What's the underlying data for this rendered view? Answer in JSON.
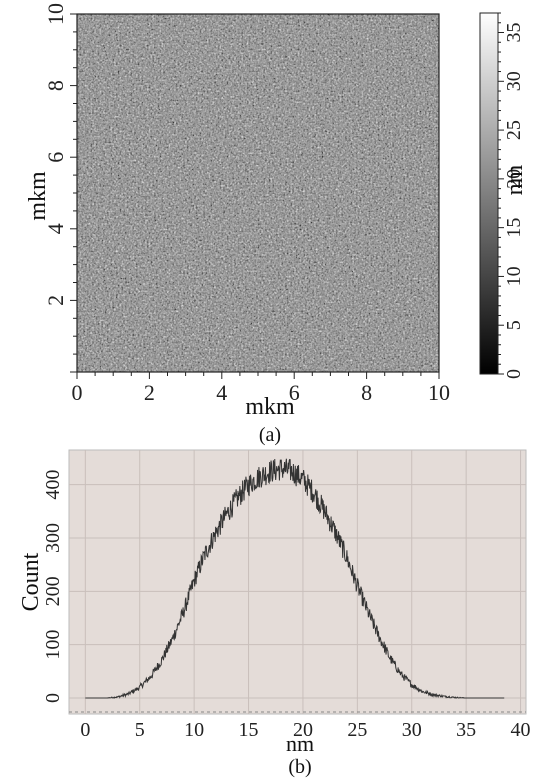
{
  "chart_data": [
    {
      "type": "heatmap",
      "panel_label": "(a)",
      "xlabel": "mkm",
      "ylabel": "mkm",
      "x_ticks": [
        "0",
        "2",
        "4",
        "6",
        "8",
        "10"
      ],
      "y_ticks": [
        "2",
        "4",
        "6",
        "8",
        "10"
      ],
      "xlim": [
        0,
        10
      ],
      "ylim": [
        0,
        10
      ],
      "colorbar": {
        "label": "nm",
        "ticks": [
          "0",
          "5",
          "10",
          "15",
          "20",
          "25",
          "30",
          "35"
        ],
        "range": [
          0,
          37
        ],
        "colors": [
          "#000000",
          "#ffffff"
        ]
      },
      "description_hint": "grainy grayscale AFM height map"
    },
    {
      "type": "line",
      "panel_label": "(b)",
      "xlabel": "nm",
      "ylabel": "Count",
      "x_ticks": [
        "0",
        "5",
        "10",
        "15",
        "20",
        "25",
        "30",
        "35",
        "40"
      ],
      "y_ticks": [
        "0",
        "100",
        "200",
        "300",
        "400"
      ],
      "xlim": [
        -1.5,
        40.5
      ],
      "ylim": [
        -30,
        465
      ],
      "grid": true,
      "background": "#e4dcd8",
      "line_color": "#333333",
      "x": [
        0,
        1,
        2,
        3,
        4,
        5,
        6,
        7,
        8,
        9,
        10,
        11,
        12,
        13,
        14,
        15,
        16,
        17,
        18,
        19,
        20,
        21,
        22,
        23,
        24,
        25,
        26,
        27,
        28,
        29,
        30,
        31,
        32,
        33,
        34,
        35,
        36,
        37,
        38,
        38.5
      ],
      "y": [
        0,
        0,
        0,
        2,
        8,
        20,
        40,
        70,
        110,
        160,
        220,
        270,
        310,
        345,
        375,
        400,
        415,
        425,
        430,
        425,
        410,
        385,
        350,
        310,
        265,
        210,
        160,
        115,
        75,
        45,
        25,
        12,
        6,
        3,
        1,
        0,
        0,
        0,
        0,
        0
      ]
    }
  ]
}
